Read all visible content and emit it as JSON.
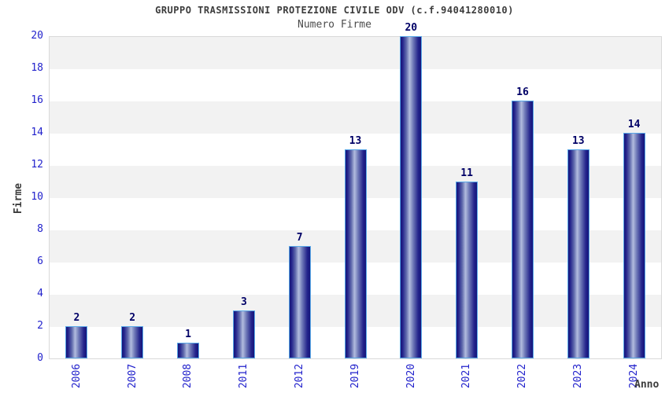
{
  "chart_data": {
    "type": "bar",
    "title": "GRUPPO TRASMISSIONI PROTEZIONE CIVILE ODV (c.f.94041280010)",
    "subtitle": "Numero Firme",
    "xlabel": "Anno",
    "ylabel": "Firme",
    "categories": [
      "2006",
      "2007",
      "2008",
      "2011",
      "2012",
      "2019",
      "2020",
      "2021",
      "2022",
      "2023",
      "2024"
    ],
    "values": [
      2,
      2,
      1,
      3,
      7,
      13,
      20,
      11,
      16,
      13,
      14
    ],
    "ylim": [
      0,
      20
    ],
    "ytick_step": 2,
    "grid": "alternating-horizontal-bands",
    "legend_position": "none",
    "colors": {
      "bar_dark": "#15157a",
      "bar_highlight": "#b2bcde",
      "bar_border": "#58a8e8",
      "value_label": "#000066",
      "tick_label": "#2222cc",
      "axis_title": "#3c3c3c",
      "title": "#3c3c3c",
      "subtitle": "#4c4c4c",
      "band_gray": "#f2f2f2",
      "band_white": "#ffffff",
      "plot_border": "#d9d9d9",
      "background": "#ffffff"
    }
  }
}
